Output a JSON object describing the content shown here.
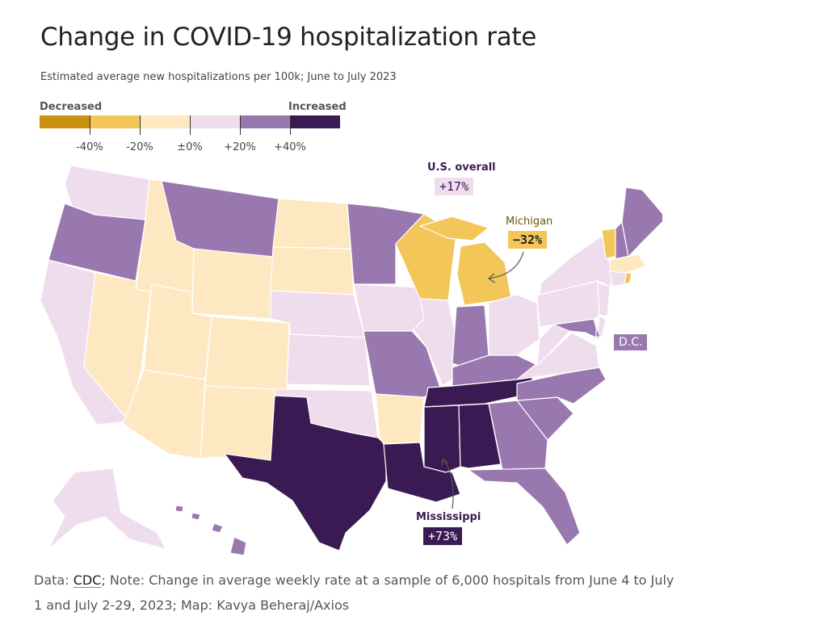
{
  "title": "Change in COVID-19 hospitalization rate",
  "subtitle": "Estimated average new hospitalizations per 100k; June to July 2023",
  "legend": {
    "low_label": "Decreased",
    "high_label": "Increased",
    "ticks": [
      "-40%",
      "-20%",
      "±0%",
      "+20%",
      "+40%"
    ],
    "colors": [
      "#c8900e",
      "#f3c65a",
      "#fde8c2",
      "#efdced",
      "#9978b0",
      "#3a1a52"
    ]
  },
  "callouts": {
    "us": {
      "label": "U.S. overall",
      "value": "+17%"
    },
    "michigan": {
      "label": "Michigan",
      "value": "−32%"
    },
    "dc": {
      "label": "D.C."
    },
    "mississippi": {
      "label": "Mississippi",
      "value": "+73%"
    }
  },
  "colors": {
    "dec_strong": "#f3c65a",
    "dec_light": "#fde8c2",
    "inc_light": "#efdced",
    "inc_mid": "#9978b0",
    "inc_strong": "#3a1a52",
    "label_purple": "#3a1a52",
    "label_gold": "#6b5210"
  },
  "footer": {
    "prefix": "Data: ",
    "link": "CDC",
    "rest": "; Note: Change in average weekly rate at a sample of 6,000 hospitals from June 4 to July 1 and July 2-29, 2023; Map: Kavya Beheraj/Axios"
  }
}
